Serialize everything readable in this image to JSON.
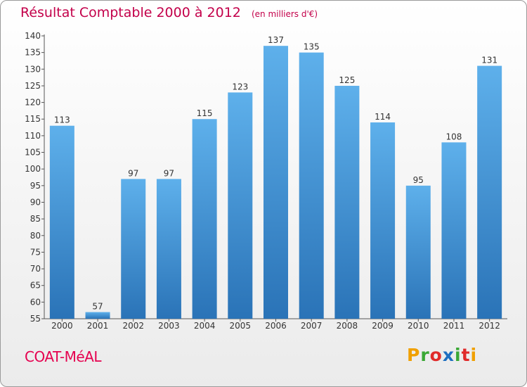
{
  "header": {
    "title": "Résultat Comptable 2000 à 2012",
    "unit": "(en milliers d'€)"
  },
  "footer": {
    "commune": "COAT-MéAL",
    "logo_letters": [
      "P",
      "r",
      "o",
      "x",
      "i",
      "t",
      "i"
    ],
    "logo_colors": [
      "#f0a000",
      "#3aa835",
      "#e02a2a",
      "#1e6fc0",
      "#3aa835",
      "#e02a2a",
      "#f0a000"
    ]
  },
  "colors": {
    "bar_light": "#5eb0eb",
    "bar_dark": "#2a73b7",
    "title": "#c3004a",
    "axis": "#555555"
  },
  "chart_data": {
    "type": "bar",
    "title": "Résultat Comptable 2000 à 2012",
    "unit": "(en milliers d'€)",
    "categories": [
      "2000",
      "2001",
      "2002",
      "2003",
      "2004",
      "2005",
      "2006",
      "2007",
      "2008",
      "2009",
      "2010",
      "2011",
      "2012"
    ],
    "values": [
      113,
      57,
      97,
      97,
      115,
      123,
      137,
      135,
      125,
      114,
      95,
      108,
      131
    ],
    "ylim": [
      55,
      140
    ],
    "ytick_step": 5,
    "grid": false,
    "xlabel": "",
    "ylabel": ""
  }
}
